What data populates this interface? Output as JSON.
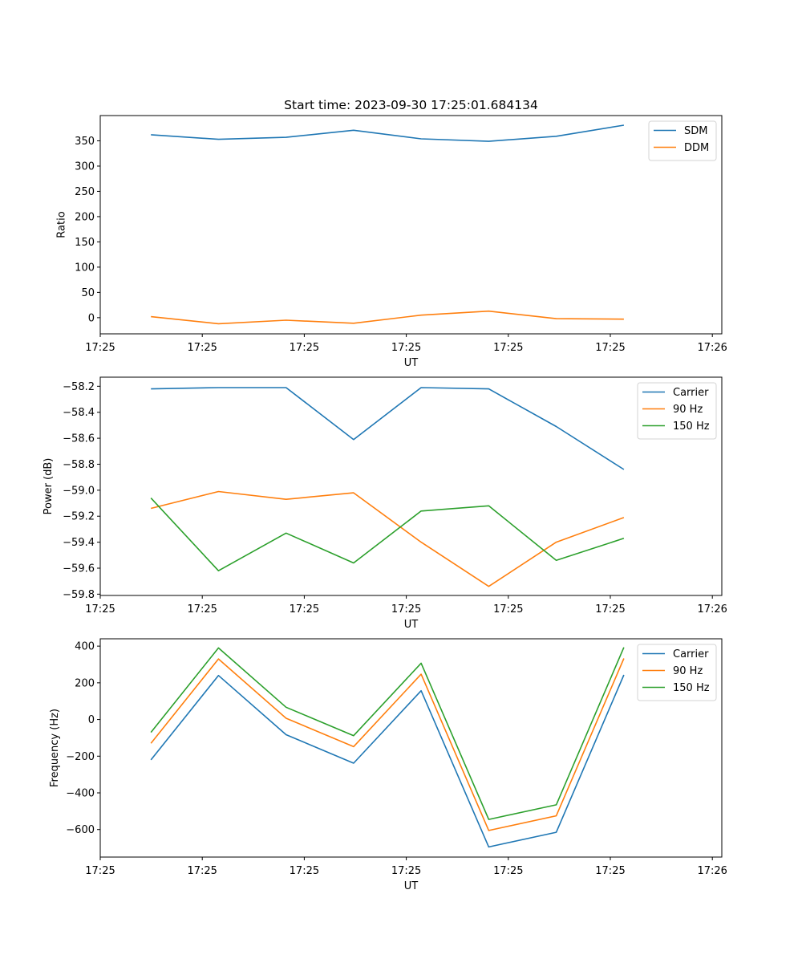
{
  "figure": {
    "title": "Start time: 2023-09-30 17:25:01.684134"
  },
  "chart_data": [
    {
      "type": "line",
      "xlabel": "UT",
      "ylabel": "Ratio",
      "x": [
        1,
        2,
        3,
        4,
        5,
        6,
        7,
        8
      ],
      "xlim": [
        0.25,
        9.45
      ],
      "xticks": [
        0.25,
        1.76,
        3.27,
        4.78,
        6.29,
        7.8,
        9.31
      ],
      "xticklabels": [
        "17:25",
        "17:25",
        "17:25",
        "17:25",
        "17:25",
        "17:25",
        "17:26"
      ],
      "ylim": [
        -32,
        400
      ],
      "yticks": [
        0,
        50,
        100,
        150,
        200,
        250,
        300,
        350
      ],
      "yticklabels": [
        "0",
        "50",
        "100",
        "150",
        "200",
        "250",
        "300",
        "350"
      ],
      "legend_position": "top-right",
      "series": [
        {
          "name": "SDM",
          "color": "#1f77b4",
          "values": [
            362,
            353,
            357,
            371,
            354,
            349,
            359,
            381
          ]
        },
        {
          "name": "DDM",
          "color": "#ff7f0e",
          "values": [
            2,
            -12,
            -5,
            -11,
            5,
            13,
            -2,
            -3
          ]
        }
      ]
    },
    {
      "type": "line",
      "xlabel": "UT",
      "ylabel": "Power (dB)",
      "x": [
        1,
        2,
        3,
        4,
        5,
        6,
        7,
        8
      ],
      "xlim": [
        0.25,
        9.45
      ],
      "xticks": [
        0.25,
        1.76,
        3.27,
        4.78,
        6.29,
        7.8,
        9.31
      ],
      "xticklabels": [
        "17:25",
        "17:25",
        "17:25",
        "17:25",
        "17:25",
        "17:25",
        "17:26"
      ],
      "ylim": [
        -59.81,
        -58.13
      ],
      "yticks": [
        -58.2,
        -58.4,
        -58.6,
        -58.8,
        -59.0,
        -59.2,
        -59.4,
        -59.6,
        -59.8
      ],
      "yticklabels": [
        "−58.2",
        "−58.4",
        "−58.6",
        "−58.8",
        "−59.0",
        "−59.2",
        "−59.4",
        "−59.6",
        "−59.8"
      ],
      "legend_position": "top-right",
      "series": [
        {
          "name": "Carrier",
          "color": "#1f77b4",
          "values": [
            -58.22,
            -58.21,
            -58.21,
            -58.61,
            -58.21,
            -58.22,
            -58.51,
            -58.84
          ]
        },
        {
          "name": "90 Hz",
          "color": "#ff7f0e",
          "values": [
            -59.14,
            -59.01,
            -59.07,
            -59.02,
            -59.4,
            -59.74,
            -59.4,
            -59.21
          ]
        },
        {
          "name": "150 Hz",
          "color": "#2ca02c",
          "values": [
            -59.06,
            -59.62,
            -59.33,
            -59.56,
            -59.16,
            -59.12,
            -59.54,
            -59.37
          ]
        }
      ]
    },
    {
      "type": "line",
      "xlabel": "UT",
      "ylabel": "Frequency (Hz)",
      "x": [
        1,
        2,
        3,
        4,
        5,
        6,
        7,
        8
      ],
      "xlim": [
        0.25,
        9.45
      ],
      "xticks": [
        0.25,
        1.76,
        3.27,
        4.78,
        6.29,
        7.8,
        9.31
      ],
      "xticklabels": [
        "17:25",
        "17:25",
        "17:25",
        "17:25",
        "17:25",
        "17:25",
        "17:26"
      ],
      "ylim": [
        -750,
        440
      ],
      "yticks": [
        400,
        200,
        0,
        -200,
        -400,
        -600
      ],
      "yticklabels": [
        "400",
        "200",
        "0",
        "−200",
        "−400",
        "−600"
      ],
      "legend_position": "top-right",
      "series": [
        {
          "name": "Carrier",
          "color": "#1f77b4",
          "values": [
            -220,
            240,
            -83,
            -238,
            157,
            -695,
            -615,
            243
          ]
        },
        {
          "name": "90 Hz",
          "color": "#ff7f0e",
          "values": [
            -130,
            330,
            7,
            -148,
            247,
            -605,
            -525,
            333
          ]
        },
        {
          "name": "150 Hz",
          "color": "#2ca02c",
          "values": [
            -70,
            390,
            67,
            -88,
            307,
            -545,
            -465,
            393
          ]
        }
      ]
    }
  ]
}
